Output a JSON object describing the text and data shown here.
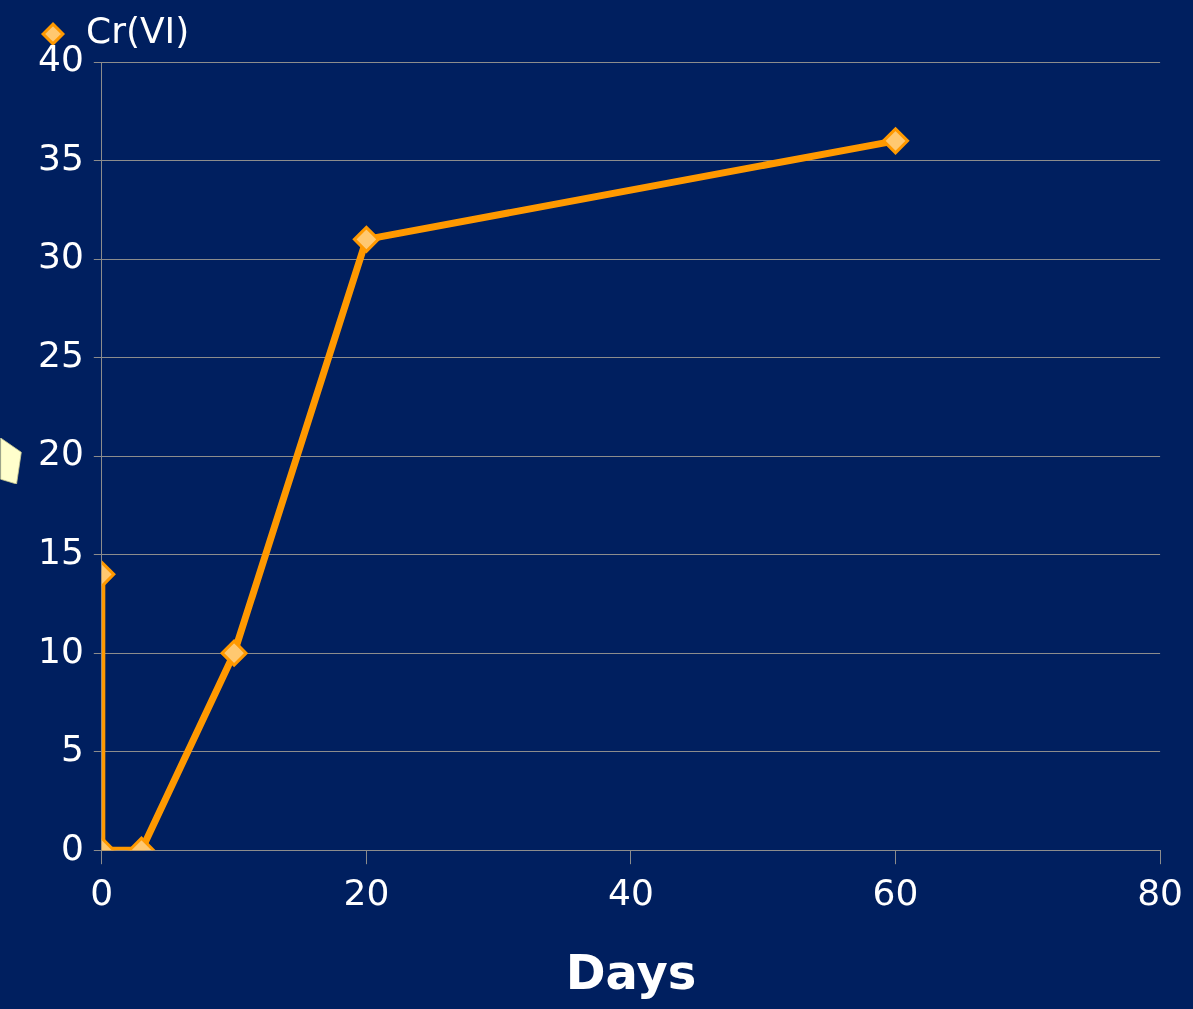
{
  "chart_data": {
    "type": "line",
    "xlabel": "Days",
    "series": [
      {
        "name": "Cr(VI)",
        "color": "#ff9900",
        "x": [
          0,
          0,
          3,
          10,
          20,
          60
        ],
        "values": [
          14,
          0,
          0,
          10,
          31,
          36
        ]
      }
    ],
    "xlim": [
      0,
      80
    ],
    "xticks": [
      0,
      20,
      40,
      60,
      80
    ],
    "ylim": [
      0,
      40
    ],
    "yticks": [
      0,
      5,
      10,
      15,
      20,
      25,
      30,
      35,
      40
    ],
    "grid": "y",
    "legend": "top left",
    "marker": "diamond",
    "line_style": "solid"
  }
}
